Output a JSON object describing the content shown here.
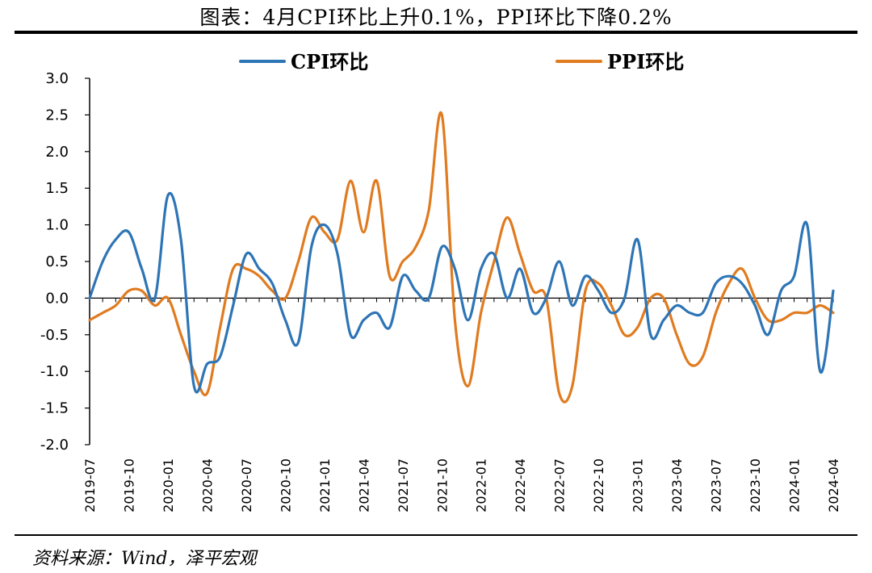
{
  "header": {
    "title": "图表：4月CPI环比上升0.1%，PPI环比下降0.2%"
  },
  "footer": {
    "source": "资料来源：Wind，泽平宏观"
  },
  "colors": {
    "cpi": "#2E75B6",
    "ppi": "#E07B20"
  },
  "chart_data": {
    "type": "line",
    "title": "",
    "xlabel": "",
    "ylabel": "",
    "ylim": [
      -2.0,
      3.0
    ],
    "yticks": [
      "3.0",
      "2.5",
      "2.0",
      "1.5",
      "1.0",
      "0.5",
      "0.0",
      "-0.5",
      "-1.0",
      "-1.5",
      "-2.0"
    ],
    "xtick_labels": [
      "2019-07",
      "2019-10",
      "2020-01",
      "2020-04",
      "2020-07",
      "2020-10",
      "2021-01",
      "2021-04",
      "2021-07",
      "2021-10",
      "2022-01",
      "2022-04",
      "2022-07",
      "2022-10",
      "2023-01",
      "2023-04",
      "2023-07",
      "2023-10",
      "2024-01",
      "2024-04"
    ],
    "legend": "top",
    "x": [
      "2019-07",
      "2019-08",
      "2019-09",
      "2019-10",
      "2019-11",
      "2019-12",
      "2020-01",
      "2020-02",
      "2020-03",
      "2020-04",
      "2020-05",
      "2020-06",
      "2020-07",
      "2020-08",
      "2020-09",
      "2020-10",
      "2020-11",
      "2020-12",
      "2021-01",
      "2021-02",
      "2021-03",
      "2021-04",
      "2021-05",
      "2021-06",
      "2021-07",
      "2021-08",
      "2021-09",
      "2021-10",
      "2021-11",
      "2021-12",
      "2022-01",
      "2022-02",
      "2022-03",
      "2022-04",
      "2022-05",
      "2022-06",
      "2022-07",
      "2022-08",
      "2022-09",
      "2022-10",
      "2022-11",
      "2022-12",
      "2023-01",
      "2023-02",
      "2023-03",
      "2023-04",
      "2023-05",
      "2023-06",
      "2023-07",
      "2023-08",
      "2023-09",
      "2023-10",
      "2023-11",
      "2023-12",
      "2024-01",
      "2024-02",
      "2024-03",
      "2024-04"
    ],
    "series": [
      {
        "name": "CPI环比",
        "color": "#2E75B6",
        "values": [
          0.0,
          0.5,
          0.8,
          0.9,
          0.4,
          0.0,
          1.4,
          0.8,
          -1.2,
          -0.9,
          -0.8,
          -0.1,
          0.6,
          0.4,
          0.2,
          -0.3,
          -0.6,
          0.7,
          1.0,
          0.6,
          -0.5,
          -0.3,
          -0.2,
          -0.4,
          0.3,
          0.1,
          0.0,
          0.7,
          0.4,
          -0.3,
          0.4,
          0.6,
          0.0,
          0.4,
          -0.2,
          0.0,
          0.5,
          -0.1,
          0.3,
          0.1,
          -0.2,
          0.0,
          0.8,
          -0.5,
          -0.3,
          -0.1,
          -0.2,
          -0.2,
          0.2,
          0.3,
          0.2,
          -0.1,
          -0.5,
          0.1,
          0.3,
          1.0,
          -1.0,
          0.1
        ]
      },
      {
        "name": "PPI环比",
        "color": "#E07B20",
        "values": [
          -0.3,
          -0.2,
          -0.1,
          0.1,
          0.1,
          -0.1,
          0.0,
          -0.5,
          -1.0,
          -1.3,
          -0.4,
          0.4,
          0.4,
          0.3,
          0.1,
          0.0,
          0.5,
          1.1,
          0.9,
          0.8,
          1.6,
          0.9,
          1.6,
          0.3,
          0.5,
          0.7,
          1.2,
          2.5,
          -0.3,
          -1.2,
          -0.2,
          0.5,
          1.1,
          0.6,
          0.1,
          0.0,
          -1.3,
          -1.2,
          0.1,
          0.2,
          -0.1,
          -0.5,
          -0.4,
          0.0,
          0.0,
          -0.5,
          -0.9,
          -0.8,
          -0.2,
          0.2,
          0.4,
          0.0,
          -0.3,
          -0.3,
          -0.2,
          -0.2,
          -0.1,
          -0.2
        ]
      }
    ]
  }
}
